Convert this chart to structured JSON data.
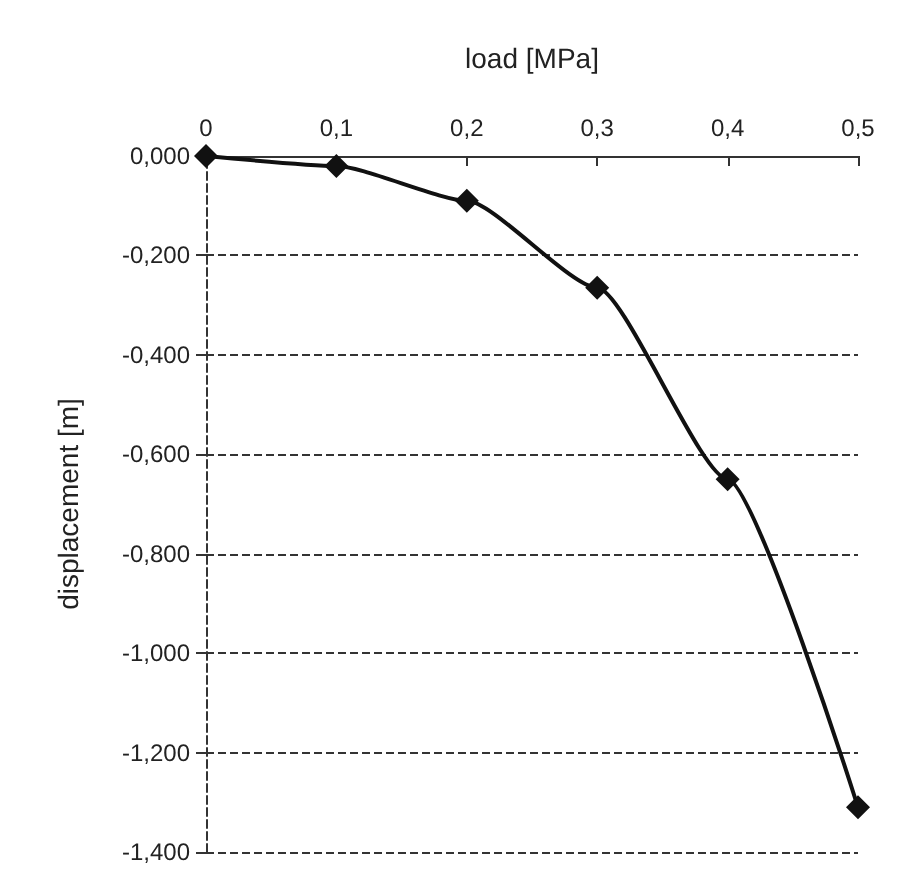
{
  "chart_data": {
    "type": "line",
    "xlabel": "load [MPa]",
    "ylabel": "displacement [m]",
    "x": [
      0,
      0.1,
      0.2,
      0.3,
      0.4,
      0.5
    ],
    "series": [
      {
        "color": "#111111",
        "values": [
          0,
          -0.02,
          -0.09,
          -0.265,
          -0.65,
          -1.31
        ]
      }
    ],
    "xlim": [
      0,
      0.5
    ],
    "xticks": [
      0,
      {
        "value": 0.1,
        "label": "0,1"
      },
      {
        "value": 0.2,
        "label": "0,2"
      },
      {
        "value": 0.3,
        "label": "0,3"
      },
      {
        "value": 0.4,
        "label": "0,4"
      },
      {
        "value": 0.5,
        "label": "0,5"
      }
    ],
    "ylim": [
      -1.4,
      0
    ],
    "yticks": [
      {
        "value": -1.4,
        "label": "-1,400"
      },
      {
        "value": -1.2,
        "label": "-1,200"
      },
      {
        "value": -1,
        "label": "-1,000"
      },
      {
        "value": -0.8,
        "label": "-0,800"
      },
      {
        "value": -0.6,
        "label": "-0,600"
      },
      {
        "value": -0.4,
        "label": "-0,400"
      },
      {
        "value": -0.2,
        "label": "-0,200"
      },
      {
        "value": 0,
        "label": "0,000"
      }
    ],
    "grid": "y",
    "marker": "diamond",
    "line_style": "solid"
  }
}
